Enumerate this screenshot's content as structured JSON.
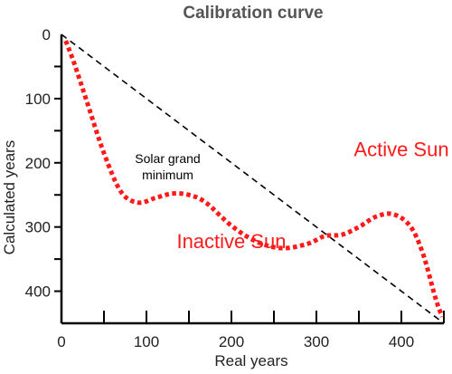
{
  "chart_data": {
    "type": "line",
    "title": "Calibration curve",
    "xlabel": "Real years",
    "ylabel": "Calculated years",
    "xlim": [
      0,
      450
    ],
    "ylim": [
      0,
      450
    ],
    "y_inverted": true,
    "x_tick_labels": [
      0,
      100,
      200,
      300,
      400
    ],
    "x_minor_ticks": [
      50,
      150,
      250,
      350,
      450
    ],
    "y_tick_labels": [
      0,
      100,
      200,
      300,
      400
    ],
    "y_minor_ticks": [
      50,
      150,
      250,
      350
    ],
    "grid": false,
    "series": [
      {
        "style": "dashed",
        "color": "#000000",
        "x": [
          0,
          450
        ],
        "y": [
          0,
          450
        ]
      },
      {
        "style": "dotted",
        "color": "#ff1a1a",
        "x": [
          5,
          15,
          30,
          50,
          70,
          90,
          110,
          130,
          150,
          170,
          200,
          230,
          260,
          290,
          310,
          330,
          350,
          370,
          390,
          410,
          425,
          440,
          448
        ],
        "y": [
          10,
          45,
          105,
          185,
          245,
          262,
          255,
          248,
          250,
          262,
          298,
          323,
          333,
          326,
          314,
          312,
          300,
          284,
          280,
          298,
          340,
          410,
          440
        ]
      }
    ],
    "annotations": [
      {
        "text_lines": [
          "Solar grand",
          "minimum"
        ],
        "x": 125,
        "y": 200,
        "color": "#000000"
      },
      {
        "text": "Active Sun",
        "x": 400,
        "y": 190,
        "color": "#ff1a1a"
      },
      {
        "text": "Inactive Sun",
        "x": 200,
        "y": 333,
        "color": "#ff1a1a"
      }
    ]
  }
}
